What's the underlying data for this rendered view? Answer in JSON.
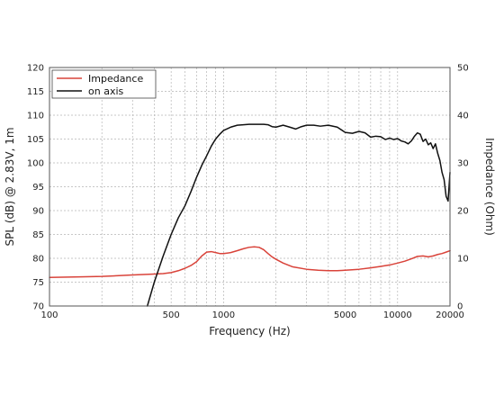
{
  "chart_data": {
    "type": "line",
    "title": "",
    "xlabel": "Frequency (Hz)",
    "ylabel_left": "SPL (dB) @ 2.83V, 1m",
    "ylabel_right": "Impedance (Ohm)",
    "x_scale": "log",
    "xlim": [
      100,
      20000
    ],
    "ylim_left": [
      70,
      120
    ],
    "ylim_right": [
      0,
      50
    ],
    "x_tick_labels": [
      "100",
      "500",
      "1000",
      "5000",
      "10000",
      "20000"
    ],
    "y_left_tick_labels": [
      "70",
      "75",
      "80",
      "85",
      "90",
      "95",
      "100",
      "105",
      "110",
      "115",
      "120"
    ],
    "y_right_tick_labels": [
      "0",
      "10",
      "20",
      "30",
      "40",
      "50"
    ],
    "grid": true,
    "legend_position": "top-left",
    "series": [
      {
        "name": "Impedance",
        "axis": "right",
        "color": "#d9433a",
        "x": [
          100,
          150,
          200,
          300,
          400,
          450,
          500,
          550,
          600,
          650,
          700,
          750,
          800,
          850,
          900,
          950,
          1000,
          1100,
          1200,
          1300,
          1400,
          1500,
          1600,
          1700,
          1800,
          1900,
          2000,
          2200,
          2500,
          3000,
          3500,
          4000,
          4500,
          5000,
          6000,
          7000,
          8000,
          9000,
          10000,
          11000,
          12000,
          13000,
          14000,
          15000,
          16000,
          17000,
          18000,
          19000,
          20000
        ],
        "y": [
          6.0,
          6.1,
          6.2,
          6.5,
          6.7,
          6.8,
          7.0,
          7.4,
          7.9,
          8.5,
          9.3,
          10.5,
          11.3,
          11.4,
          11.2,
          11.0,
          11.0,
          11.2,
          11.6,
          12.0,
          12.3,
          12.4,
          12.3,
          11.8,
          11.0,
          10.3,
          9.8,
          9.0,
          8.2,
          7.7,
          7.5,
          7.4,
          7.4,
          7.5,
          7.7,
          8.0,
          8.3,
          8.6,
          9.0,
          9.4,
          9.9,
          10.4,
          10.5,
          10.3,
          10.5,
          10.8,
          11.0,
          11.3,
          11.6
        ]
      },
      {
        "name": "on axis",
        "axis": "left",
        "color": "#111111",
        "x": [
          365,
          400,
          450,
          500,
          550,
          600,
          650,
          700,
          750,
          800,
          850,
          900,
          950,
          1000,
          1100,
          1200,
          1300,
          1400,
          1500,
          1600,
          1700,
          1800,
          1900,
          2000,
          2200,
          2400,
          2600,
          2800,
          3000,
          3300,
          3600,
          4000,
          4500,
          5000,
          5500,
          6000,
          6500,
          7000,
          7500,
          8000,
          8500,
          9000,
          9500,
          10000,
          10500,
          11000,
          11500,
          12000,
          12500,
          13000,
          13500,
          14000,
          14500,
          15000,
          15500,
          16000,
          16500,
          17000,
          17500,
          18000,
          18500,
          19000,
          19500,
          20000
        ],
        "y": [
          70.0,
          75.0,
          80.5,
          85.0,
          88.5,
          91.0,
          94.0,
          97.0,
          99.5,
          101.5,
          103.5,
          105.0,
          106.0,
          106.8,
          107.5,
          107.9,
          108.0,
          108.1,
          108.1,
          108.1,
          108.1,
          108.0,
          107.6,
          107.5,
          107.9,
          107.5,
          107.1,
          107.6,
          107.9,
          107.9,
          107.7,
          107.9,
          107.5,
          106.4,
          106.2,
          106.6,
          106.3,
          105.4,
          105.6,
          105.5,
          104.9,
          105.2,
          104.9,
          105.1,
          104.6,
          104.4,
          104.0,
          104.6,
          105.6,
          106.3,
          106.0,
          104.5,
          105.0,
          103.8,
          104.2,
          103.0,
          104.0,
          102.0,
          100.5,
          98.0,
          96.5,
          93.0,
          92.0,
          98.0
        ]
      }
    ]
  }
}
